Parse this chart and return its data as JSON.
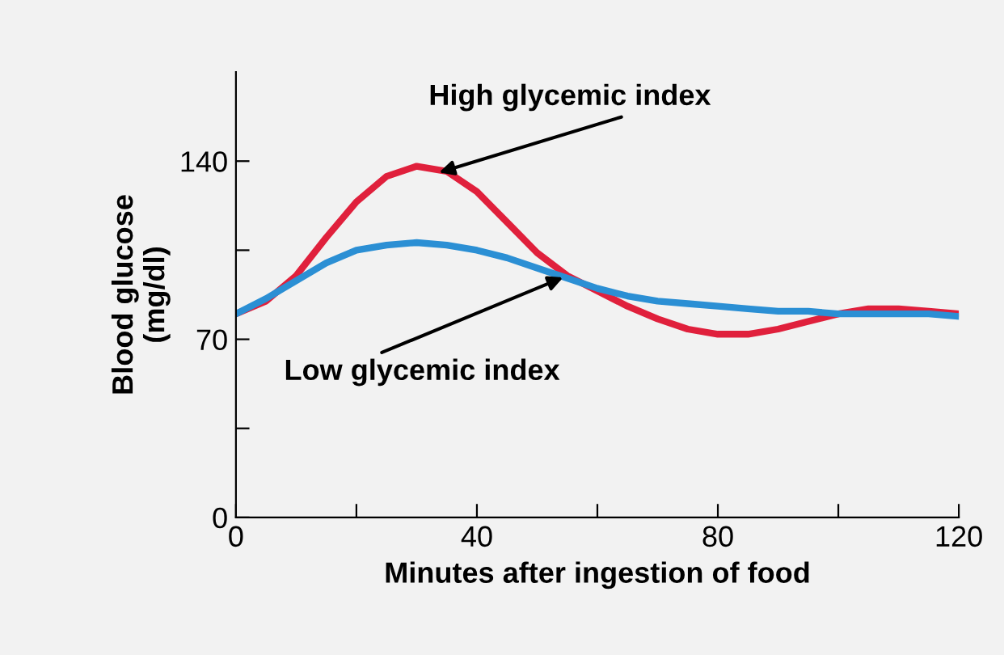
{
  "chart_data": {
    "type": "line",
    "xlabel": "Minutes after ingestion of food",
    "ylabel": "Blood glucose\n(mg/dl)",
    "x": [
      0,
      5,
      10,
      15,
      20,
      25,
      30,
      35,
      40,
      45,
      50,
      55,
      60,
      65,
      70,
      75,
      80,
      85,
      90,
      95,
      100,
      105,
      110,
      115,
      120
    ],
    "series": [
      {
        "color": "#e0203c",
        "values": [
          80,
          85,
          95,
          110,
          124,
          134,
          138,
          136,
          128,
          116,
          104,
          95,
          89,
          83,
          78,
          74,
          72,
          72,
          74,
          77,
          80,
          82,
          82,
          81,
          80
        ]
      },
      {
        "color": "#2b8fd4",
        "values": [
          80,
          86,
          93,
          100,
          105,
          107,
          108,
          107,
          105,
          102,
          98,
          94,
          90,
          87,
          85,
          84,
          83,
          82,
          81,
          81,
          80,
          80,
          80,
          80,
          79
        ]
      }
    ],
    "annotations": [
      {
        "text": "High glycemic index",
        "x": 33,
        "y": 135
      },
      {
        "text": "Low glycemic index",
        "x": 55,
        "y": 95
      }
    ],
    "xlim": [
      0,
      120
    ],
    "ylim": [
      0,
      175
    ],
    "xticks": [
      0,
      {
        "value": 20,
        "label": null
      },
      40,
      {
        "value": 60,
        "label": null
      },
      80,
      {
        "value": 100,
        "label": null
      },
      120
    ],
    "yticks": [
      0,
      {
        "value": 35,
        "label": null
      },
      70,
      {
        "value": 105,
        "label": null
      },
      140
    ],
    "grid": false,
    "legend": false,
    "marker": "none",
    "line_style": "solid"
  }
}
